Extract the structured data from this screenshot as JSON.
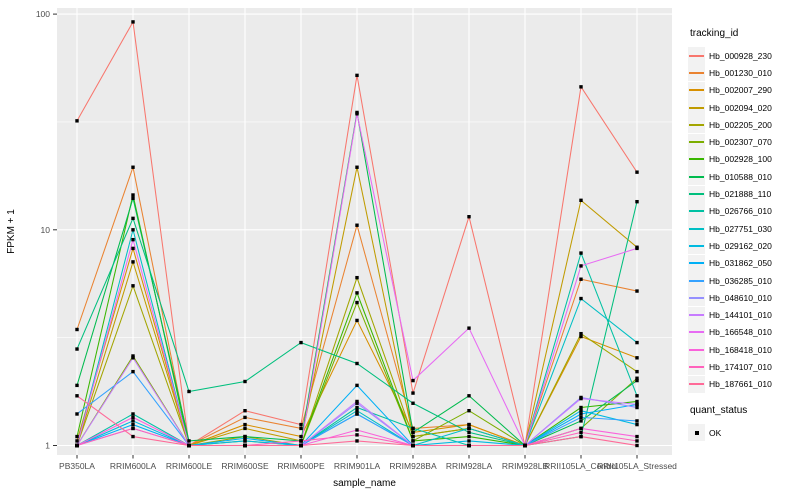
{
  "chart_data": {
    "type": "line",
    "title": "",
    "xlabel": "sample_name",
    "ylabel": "FPKM + 1",
    "y_scale": "log10",
    "y_ticks": [
      1,
      10,
      100
    ],
    "y_minor_ticks": [
      3.162,
      31.62
    ],
    "ylim": [
      0.9,
      110
    ],
    "grid": "white major+minor gridlines on grey panel",
    "marker": "black-square",
    "panel_color": "#EBEBEB",
    "legend_position": "right",
    "legend_color_title": "tracking_id",
    "legend_shape_title": "quant_status",
    "legend_shape_label": "OK",
    "categories": [
      "PB350LA",
      "RRIM600LA",
      "RRIM600LE",
      "RRIM600SE",
      "RRIM600PE",
      "RRIM901LA",
      "RRIM928BA",
      "RRIM928LA",
      "RRIM928LB",
      "RRII105LA_Control",
      "RRII105LA_Stressed"
    ],
    "series": [
      {
        "name": "Hb_000928_230",
        "color": "#F8766D",
        "values": [
          32,
          92,
          1.0,
          1.45,
          1.25,
          52,
          1.75,
          11.5,
          1.0,
          46,
          18.5
        ]
      },
      {
        "name": "Hb_001230_010",
        "color": "#EA8331",
        "values": [
          3.45,
          19.5,
          1.0,
          1.35,
          1.2,
          10.5,
          1.2,
          1.25,
          1.0,
          5.9,
          5.2
        ]
      },
      {
        "name": "Hb_002007_290",
        "color": "#D89000",
        "values": [
          1.05,
          8.2,
          1.0,
          1.25,
          1.1,
          3.8,
          1.15,
          1.25,
          1.0,
          3.2,
          2.55
        ]
      },
      {
        "name": "Hb_002094_020",
        "color": "#C09B00",
        "values": [
          1.0,
          7.1,
          1.0,
          1.2,
          1.05,
          19.5,
          1.1,
          1.2,
          1.0,
          13.7,
          8.3
        ]
      },
      {
        "name": "Hb_002205_200",
        "color": "#A3A500",
        "values": [
          1.0,
          5.5,
          1.0,
          1.1,
          1.0,
          6.0,
          1.1,
          1.2,
          1.0,
          3.3,
          2.2
        ]
      },
      {
        "name": "Hb_002307_070",
        "color": "#7CAE00",
        "values": [
          1.0,
          2.6,
          1.0,
          1.05,
          1.0,
          4.6,
          1.05,
          1.45,
          1.0,
          1.2,
          2.05
        ]
      },
      {
        "name": "Hb_002928_100",
        "color": "#39B600",
        "values": [
          1.1,
          14.5,
          1.0,
          1.0,
          1.0,
          5.1,
          1.05,
          1.1,
          1.0,
          1.5,
          1.6
        ]
      },
      {
        "name": "Hb_010588_010",
        "color": "#00BB4E",
        "values": [
          1.9,
          14.0,
          1.05,
          1.1,
          1.05,
          35,
          1.15,
          1.7,
          1.0,
          1.3,
          2.0
        ]
      },
      {
        "name": "Hb_021888_110",
        "color": "#00BF7D",
        "values": [
          2.8,
          11.3,
          1.78,
          1.98,
          3.0,
          2.4,
          1.57,
          1.15,
          1.0,
          1.1,
          13.5
        ]
      },
      {
        "name": "Hb_026766_010",
        "color": "#00C1A3",
        "values": [
          1.0,
          1.4,
          1.0,
          1.0,
          1.0,
          1.5,
          1.2,
          1.0,
          1.0,
          7.8,
          1.7
        ]
      },
      {
        "name": "Hb_027751_030",
        "color": "#00BFC4",
        "values": [
          1.0,
          10.0,
          1.0,
          1.0,
          1.0,
          1.45,
          1.0,
          1.2,
          1.0,
          4.8,
          3.0
        ]
      },
      {
        "name": "Hb_029162_020",
        "color": "#00BAE0",
        "values": [
          1.0,
          1.3,
          1.0,
          1.05,
          1.0,
          1.4,
          1.0,
          1.05,
          1.0,
          1.45,
          1.25
        ]
      },
      {
        "name": "Hb_031862_050",
        "color": "#00B0F6",
        "values": [
          1.0,
          1.25,
          1.0,
          1.08,
          1.0,
          1.9,
          1.0,
          1.0,
          1.0,
          1.4,
          1.55
        ]
      },
      {
        "name": "Hb_036285_010",
        "color": "#35A2FF",
        "values": [
          1.4,
          2.2,
          1.0,
          1.0,
          1.0,
          1.4,
          1.0,
          1.0,
          1.0,
          1.35,
          1.3
        ]
      },
      {
        "name": "Hb_048610_010",
        "color": "#9590FF",
        "values": [
          1.0,
          1.2,
          1.0,
          1.0,
          1.0,
          1.57,
          1.0,
          1.0,
          1.0,
          1.67,
          1.5
        ]
      },
      {
        "name": "Hb_144101_010",
        "color": "#C77CFF",
        "values": [
          1.0,
          2.55,
          1.0,
          1.0,
          1.0,
          1.6,
          1.0,
          1.0,
          1.0,
          1.65,
          1.55
        ]
      },
      {
        "name": "Hb_166548_010",
        "color": "#E76BF3",
        "values": [
          1.0,
          9.0,
          1.0,
          1.0,
          1.0,
          34.5,
          2.0,
          3.5,
          1.0,
          6.8,
          8.2
        ]
      },
      {
        "name": "Hb_168418_010",
        "color": "#FA62DB",
        "values": [
          1.0,
          1.35,
          1.0,
          1.0,
          1.0,
          1.18,
          1.0,
          1.0,
          1.0,
          1.2,
          1.1
        ]
      },
      {
        "name": "Hb_174107_010",
        "color": "#FF62BC",
        "values": [
          1.0,
          1.2,
          1.0,
          1.0,
          1.05,
          1.12,
          1.0,
          1.0,
          1.0,
          1.15,
          1.05
        ]
      },
      {
        "name": "Hb_187661_010",
        "color": "#FF6A98",
        "values": [
          1.7,
          1.1,
          1.0,
          1.0,
          1.0,
          1.05,
          1.0,
          1.0,
          1.0,
          1.1,
          1.0
        ]
      }
    ]
  }
}
